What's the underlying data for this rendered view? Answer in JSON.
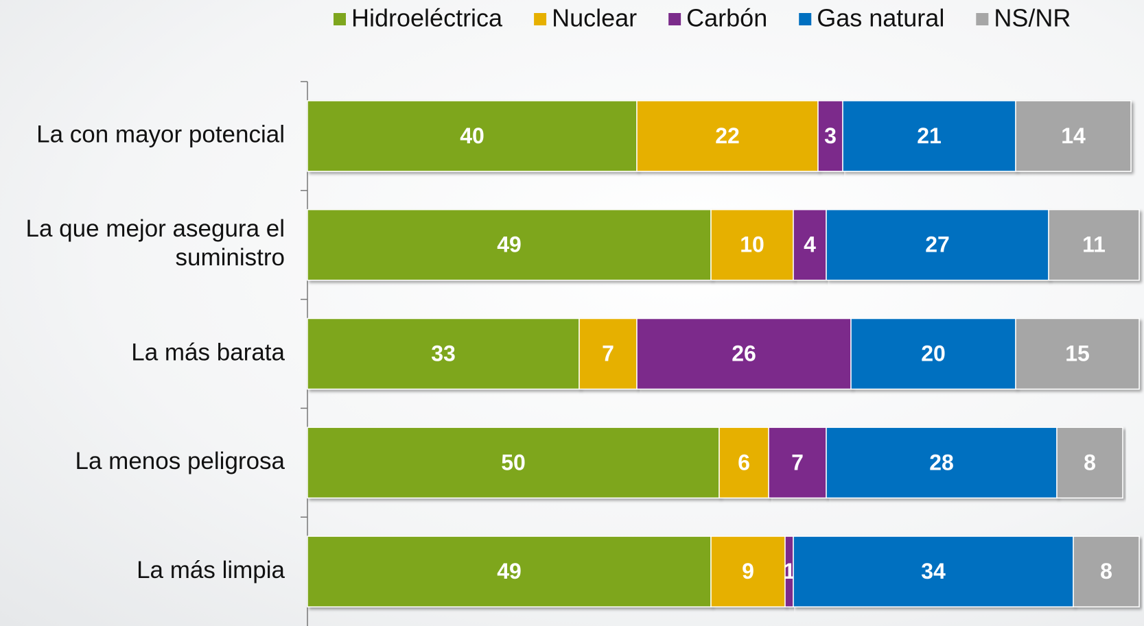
{
  "chart_data": {
    "type": "stacked-bar-horizontal",
    "categories": [
      "La con mayor potencial",
      "La que mejor asegura el suministro",
      "La más barata",
      "La menos peligrosa",
      "La más limpia"
    ],
    "series": [
      {
        "name": "Hidroeléctrica",
        "color": "#7ea61e",
        "values": [
          40,
          49,
          33,
          50,
          49
        ]
      },
      {
        "name": "Nuclear",
        "color": "#e6b000",
        "values": [
          22,
          10,
          7,
          6,
          9
        ]
      },
      {
        "name": "Carbón",
        "color": "#7b2c8b",
        "values": [
          3,
          4,
          26,
          7,
          1
        ]
      },
      {
        "name": "Gas natural",
        "color": "#0070c0",
        "values": [
          21,
          27,
          20,
          28,
          34
        ]
      },
      {
        "name": "NS/NR",
        "color": "#a6a6a6",
        "values": [
          14,
          11,
          15,
          8,
          8
        ]
      }
    ],
    "xlim": [
      0,
      100
    ],
    "legend": "top"
  }
}
